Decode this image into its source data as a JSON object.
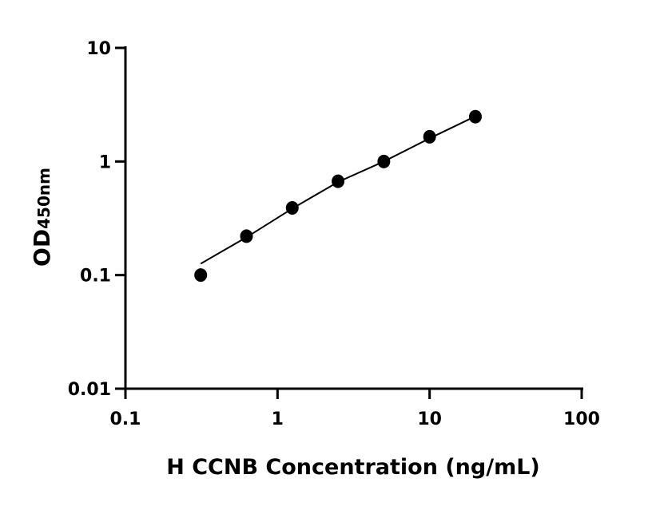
{
  "chart_data": {
    "type": "scatter",
    "title": "",
    "xlabel": "H CCNB Concentration (ng/mL)",
    "ylabel": "OD",
    "ylabel_subscript": "450nm",
    "xscale": "log",
    "yscale": "log",
    "xlim": [
      0.1,
      100
    ],
    "ylim": [
      0.01,
      10
    ],
    "xticks": [
      "0.1",
      "1",
      "10",
      "100"
    ],
    "yticks": [
      "0.01",
      "0.1",
      "1",
      "10"
    ],
    "grid": false,
    "series": [
      {
        "type": "scatter",
        "x": [
          0.3125,
          0.625,
          1.25,
          2.5,
          5,
          10,
          20
        ],
        "y": [
          0.1,
          0.22,
          0.39,
          0.67,
          1.0,
          1.65,
          2.48
        ]
      },
      {
        "type": "line",
        "x": [
          0.3125,
          0.625,
          1.25,
          2.5,
          5,
          10,
          20
        ],
        "y": [
          0.126,
          0.215,
          0.385,
          0.66,
          1.0,
          1.6,
          2.5
        ]
      }
    ],
    "colors": {
      "marker": "#000000",
      "line": "#000000"
    }
  }
}
